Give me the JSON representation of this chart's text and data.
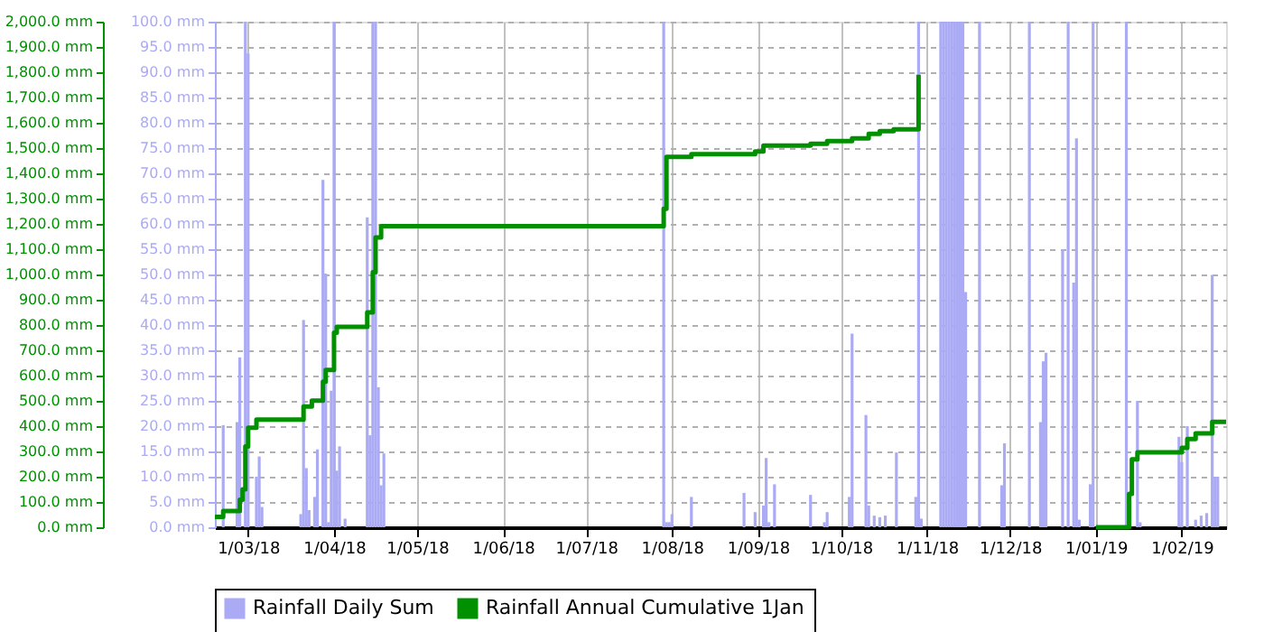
{
  "chart_data": {
    "type": "bar",
    "legend": "bottom",
    "grid": true,
    "xlim": [
      "2018-02-17",
      "2019-02-17"
    ],
    "xticks": [
      {
        "value": "2018-03-01",
        "label": "1/03/18"
      },
      {
        "value": "2018-04-01",
        "label": "1/04/18"
      },
      {
        "value": "2018-05-01",
        "label": "1/05/18"
      },
      {
        "value": "2018-06-01",
        "label": "1/06/18"
      },
      {
        "value": "2018-07-01",
        "label": "1/07/18"
      },
      {
        "value": "2018-08-01",
        "label": "1/08/18"
      },
      {
        "value": "2018-09-01",
        "label": "1/09/18"
      },
      {
        "value": "2018-10-01",
        "label": "1/10/18"
      },
      {
        "value": "2018-11-01",
        "label": "1/11/18"
      },
      {
        "value": "2018-12-01",
        "label": "1/12/18"
      },
      {
        "value": "2019-01-01",
        "label": "1/01/19"
      },
      {
        "value": "2019-02-01",
        "label": "1/02/19"
      }
    ],
    "ylim": [
      0,
      2000
    ],
    "yticks": [
      {
        "value": 0,
        "label": "0.0 mm"
      },
      {
        "value": 100,
        "label": "100.0 mm"
      },
      {
        "value": 200,
        "label": "200.0 mm"
      },
      {
        "value": 300,
        "label": "300.0 mm"
      },
      {
        "value": 400,
        "label": "400.0 mm"
      },
      {
        "value": 500,
        "label": "500.0 mm"
      },
      {
        "value": 600,
        "label": "600.0 mm"
      },
      {
        "value": 700,
        "label": "700.0 mm"
      },
      {
        "value": 800,
        "label": "800.0 mm"
      },
      {
        "value": 900,
        "label": "900.0 mm"
      },
      {
        "value": 1000,
        "label": "1,000.0 mm"
      },
      {
        "value": 1100,
        "label": "1,100.0 mm"
      },
      {
        "value": 1200,
        "label": "1,200.0 mm"
      },
      {
        "value": 1300,
        "label": "1,300.0 mm"
      },
      {
        "value": 1400,
        "label": "1,400.0 mm"
      },
      {
        "value": 1500,
        "label": "1,500.0 mm"
      },
      {
        "value": 1600,
        "label": "1,600.0 mm"
      },
      {
        "value": 1700,
        "label": "1,700.0 mm"
      },
      {
        "value": 1800,
        "label": "1,800.0 mm"
      },
      {
        "value": 1900,
        "label": "1,900.0 mm"
      },
      {
        "value": 2000,
        "label": "2,000.0 mm"
      }
    ],
    "y2lim": [
      0,
      100
    ],
    "y2ticks": [
      {
        "value": 0,
        "label": "0.0 mm"
      },
      {
        "value": 5,
        "label": "5.0 mm"
      },
      {
        "value": 10,
        "label": "10.0 mm"
      },
      {
        "value": 15,
        "label": "15.0 mm"
      },
      {
        "value": 20,
        "label": "20.0 mm"
      },
      {
        "value": 25,
        "label": "25.0 mm"
      },
      {
        "value": 30,
        "label": "30.0 mm"
      },
      {
        "value": 35,
        "label": "35.0 mm"
      },
      {
        "value": 40,
        "label": "40.0 mm"
      },
      {
        "value": 45,
        "label": "45.0 mm"
      },
      {
        "value": 50,
        "label": "50.0 mm"
      },
      {
        "value": 55,
        "label": "55.0 mm"
      },
      {
        "value": 60,
        "label": "60.0 mm"
      },
      {
        "value": 65,
        "label": "65.0 mm"
      },
      {
        "value": 70,
        "label": "70.0 mm"
      },
      {
        "value": 75,
        "label": "75.0 mm"
      },
      {
        "value": 80,
        "label": "80.0 mm"
      },
      {
        "value": 85,
        "label": "85.0 mm"
      },
      {
        "value": 90,
        "label": "90.0 mm"
      },
      {
        "value": 95,
        "label": "95.0 mm"
      },
      {
        "value": 100,
        "label": "100.0 mm"
      }
    ],
    "series": [
      {
        "name": "Rainfall Daily Sum",
        "axis": "y2",
        "color": "#aaaaf5",
        "x": [
          "2018-02-20",
          "2018-02-25",
          "2018-02-26",
          "2018-02-28",
          "2018-03-01",
          "2018-03-04",
          "2018-03-05",
          "2018-03-06",
          "2018-03-20",
          "2018-03-21",
          "2018-03-22",
          "2018-03-23",
          "2018-03-25",
          "2018-03-26",
          "2018-03-28",
          "2018-03-29",
          "2018-03-30",
          "2018-03-31",
          "2018-04-01",
          "2018-04-02",
          "2018-04-03",
          "2018-04-05",
          "2018-04-13",
          "2018-04-14",
          "2018-04-15",
          "2018-04-16",
          "2018-04-17",
          "2018-04-18",
          "2018-04-19",
          "2018-07-29",
          "2018-07-30",
          "2018-07-31",
          "2018-08-01",
          "2018-08-08",
          "2018-08-27",
          "2018-08-31",
          "2018-09-03",
          "2018-09-04",
          "2018-09-05",
          "2018-09-07",
          "2018-09-20",
          "2018-09-25",
          "2018-09-26",
          "2018-10-04",
          "2018-10-05",
          "2018-10-10",
          "2018-10-11",
          "2018-10-13",
          "2018-10-15",
          "2018-10-17",
          "2018-10-21",
          "2018-10-28",
          "2018-10-29",
          "2018-10-30",
          "2018-11-06",
          "2018-11-07",
          "2018-11-08",
          "2018-11-09",
          "2018-11-10",
          "2018-11-11",
          "2018-11-12",
          "2018-11-13",
          "2018-11-14",
          "2018-11-15",
          "2018-11-20",
          "2018-11-28",
          "2018-11-29",
          "2018-12-08",
          "2018-12-12",
          "2018-12-13",
          "2018-12-14",
          "2018-12-20",
          "2018-12-22",
          "2018-12-24",
          "2018-12-25",
          "2018-12-26",
          "2018-12-30",
          "2018-12-31",
          "2019-01-12",
          "2019-01-16",
          "2019-01-17",
          "2019-01-31",
          "2019-02-01",
          "2019-02-03",
          "2019-02-06",
          "2019-02-08",
          "2019-02-10",
          "2019-02-12",
          "2019-02-13",
          "2019-02-14"
        ],
        "values": [
          20.2,
          20.8,
          33.6,
          100,
          93.7,
          10,
          14,
          4,
          2.6,
          41,
          11.7,
          3.4,
          6,
          15.4,
          68.7,
          50.2,
          1,
          27,
          100,
          11.2,
          16,
          1.7,
          61.3,
          18.2,
          100,
          100,
          27.7,
          8.3,
          14.6,
          100,
          1,
          1,
          2.6,
          6,
          6.8,
          3,
          4.3,
          13.7,
          1,
          8.5,
          6.4,
          1,
          3,
          6,
          38.3,
          22.2,
          4.3,
          2.3,
          2,
          2.3,
          14.8,
          6,
          100,
          1.7,
          100,
          100,
          100,
          100,
          100,
          100,
          100,
          100,
          100,
          46.5,
          100,
          8.3,
          16.6,
          100,
          20.8,
          32.8,
          34.5,
          55,
          100,
          48.4,
          76.9,
          1.5,
          8.5,
          100,
          100,
          25,
          1,
          17.9,
          12.9,
          20,
          1.5,
          2.3,
          2.8,
          49.9,
          10,
          10
        ]
      },
      {
        "name": "Rainfall Annual Cumulative 1Jan",
        "type": "step",
        "color": "#009000",
        "x": [
          "2018-02-17",
          "2018-02-20",
          "2018-02-26",
          "2018-02-27",
          "2018-02-28",
          "2018-03-01",
          "2018-03-04",
          "2018-03-21",
          "2018-03-24",
          "2018-03-28",
          "2018-03-29",
          "2018-04-01",
          "2018-04-02",
          "2018-04-13",
          "2018-04-15",
          "2018-04-16",
          "2018-04-18",
          "2018-07-29",
          "2018-07-30",
          "2018-08-08",
          "2018-08-31",
          "2018-09-03",
          "2018-09-20",
          "2018-09-26",
          "2018-10-05",
          "2018-10-11",
          "2018-10-15",
          "2018-10-20",
          "2018-10-29",
          "2018-11-06",
          "2019-01-01",
          "2019-01-12",
          "2019-01-13",
          "2019-01-14",
          "2019-01-16",
          "2019-02-01",
          "2019-02-03",
          "2019-02-06",
          "2019-02-12",
          "2019-02-17"
        ],
        "values": [
          41,
          64,
          109,
          150,
          320,
          394,
          426,
          478,
          501,
          576,
          622,
          770,
          793,
          850,
          1009,
          1146,
          1191,
          1260,
          1465,
          1476,
          1487,
          1510,
          1517,
          1528,
          1538,
          1556,
          1567,
          1574,
          1790,
          null,
          0,
          0,
          132,
          269,
          296,
          314,
          349,
          371,
          417,
          417
        ]
      }
    ]
  }
}
